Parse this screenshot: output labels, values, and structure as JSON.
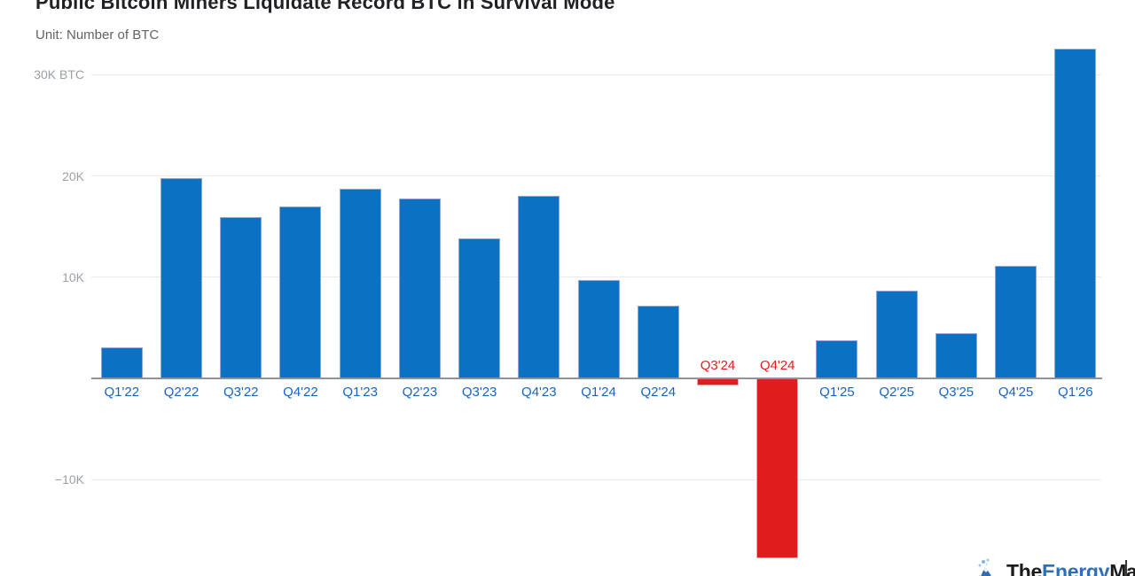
{
  "header": {
    "title": "Public Bitcoin Miners Liquidate Record BTC in Survival Mode",
    "subtitle": "Unit: Number of BTC"
  },
  "chart_data": {
    "type": "bar",
    "title": "Public Bitcoin Miners Liquidate Record BTC in Survival Mode",
    "unit": "Number of BTC",
    "categories": [
      "Q1'22",
      "Q2'22",
      "Q3'22",
      "Q4'22",
      "Q1'23",
      "Q2'23",
      "Q3'23",
      "Q4'23",
      "Q1'24",
      "Q2'24",
      "Q3'24",
      "Q4'24",
      "Q1'25",
      "Q2'25",
      "Q3'25",
      "Q4'25",
      "Q1'26"
    ],
    "values": [
      3100,
      19800,
      15900,
      17000,
      18700,
      17800,
      13800,
      18000,
      9700,
      7200,
      -700,
      -17700,
      3800,
      8700,
      4500,
      11100,
      32600
    ],
    "y_ticks": [
      {
        "value": 30000,
        "label": "30K BTC"
      },
      {
        "value": 20000,
        "label": "20K"
      },
      {
        "value": 10000,
        "label": "10K"
      },
      {
        "value": -10000,
        "label": "−10K"
      }
    ],
    "ylim": [
      -18500,
      33000
    ],
    "grid": true,
    "legend": "none",
    "colors": {
      "bar_positive": "#0b72c3",
      "bar_positive_border": "#94a6d8",
      "bar_negative": "#e11c1c",
      "bar_negative_border": "#f4aaaa",
      "x_label_positive": "#1565c0",
      "x_label_negative": "#e11c1c",
      "y_label": "#9aa0a6",
      "gridline": "#e9eaec",
      "axis_line": "#8f9296"
    }
  },
  "watermark": {
    "the": "The",
    "energy": "Energy",
    "mag": "Mag"
  }
}
